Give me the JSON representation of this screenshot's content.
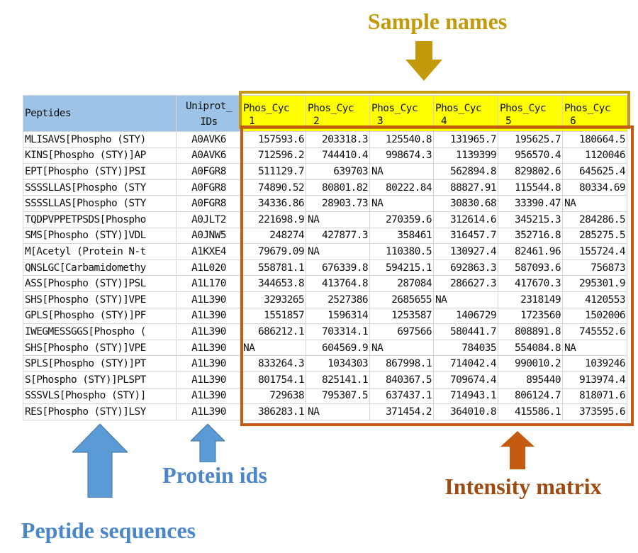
{
  "labels": {
    "sample_names": "Sample names",
    "protein_ids": "Protein ids",
    "intensity_matrix": "Intensity matrix",
    "peptide_sequences": "Peptide sequences"
  },
  "colors": {
    "sample": "#C39A0B",
    "blue": "#4A86C8",
    "orange": "#C55A11",
    "intensity_text": "#9E4A10",
    "header_blue": "#9DC3E6",
    "header_yellow": "#FFFF00"
  },
  "table": {
    "headers": {
      "peptides": "Peptides",
      "uniprot_line1": "Uniprot_",
      "uniprot_line2": "IDs",
      "samples": [
        {
          "l1": "Phos_Cyc",
          "l2": "1"
        },
        {
          "l1": "Phos_Cyc",
          "l2": "2"
        },
        {
          "l1": "Phos_Cyc",
          "l2": "3"
        },
        {
          "l1": "Phos_Cyc",
          "l2": "4"
        },
        {
          "l1": "Phos_Cyc",
          "l2": "5"
        },
        {
          "l1": "Phos_Cyc",
          "l2": "6"
        }
      ]
    },
    "rows": [
      {
        "peptide": "MLISAVS[Phospho (STY)",
        "id": "A0AVK6",
        "values": [
          "157593.6",
          "203318.3",
          "125540.8",
          "131965.7",
          "195625.7",
          "180664.5"
        ]
      },
      {
        "peptide": "KINS[Phospho (STY)]AP",
        "id": "A0AVK6",
        "values": [
          "712596.2",
          "744410.4",
          "998674.3",
          "1139399",
          "956570.4",
          "1120046"
        ]
      },
      {
        "peptide": "EPT[Phospho (STY)]PSI",
        "id": "A0FGR8",
        "values": [
          "511129.7",
          "639703",
          "NA",
          "562894.8",
          "829802.6",
          "645625.4"
        ]
      },
      {
        "peptide": "SSSSLLAS[Phospho (STY",
        "id": "A0FGR8",
        "values": [
          "74890.52",
          "80801.82",
          "80222.84",
          "88827.91",
          "115544.8",
          "80334.69"
        ]
      },
      {
        "peptide": "SSSSLLAS[Phospho (STY",
        "id": "A0FGR8",
        "values": [
          "34336.86",
          "28903.73",
          "NA",
          "30830.68",
          "33390.47",
          "NA"
        ]
      },
      {
        "peptide": "TQDPVPPETPSDS[Phospho",
        "id": "A0JLT2",
        "values": [
          "221698.9",
          "NA",
          "270359.6",
          "312614.6",
          "345215.3",
          "284286.5"
        ]
      },
      {
        "peptide": "SMS[Phospho (STY)]VDL",
        "id": "A0JNW5",
        "values": [
          "248274",
          "427877.3",
          "358461",
          "316457.7",
          "352716.8",
          "285275.5"
        ]
      },
      {
        "peptide": "M[Acetyl (Protein N-t",
        "id": "A1KXE4",
        "values": [
          "79679.09",
          "NA",
          "110380.5",
          "130927.4",
          "82461.96",
          "155724.4"
        ]
      },
      {
        "peptide": "QNSLGC[Carbamidomethy",
        "id": "A1L020",
        "values": [
          "558781.1",
          "676339.8",
          "594215.1",
          "692863.3",
          "587093.6",
          "756873"
        ]
      },
      {
        "peptide": "ASS[Phospho (STY)]PSL",
        "id": "A1L170",
        "values": [
          "344653.8",
          "413764.8",
          "287084",
          "286627.3",
          "417670.3",
          "295301.9"
        ]
      },
      {
        "peptide": "SHS[Phospho (STY)]VPE",
        "id": "A1L390",
        "values": [
          "3293265",
          "2527386",
          "2685655",
          "NA",
          "2318149",
          "4120553"
        ]
      },
      {
        "peptide": "GPLS[Phospho (STY)]PF",
        "id": "A1L390",
        "values": [
          "1551857",
          "1596314",
          "1253587",
          "1406729",
          "1723560",
          "1502006"
        ]
      },
      {
        "peptide": "IWEGMESSGGS[Phospho (",
        "id": "A1L390",
        "values": [
          "686212.1",
          "703314.1",
          "697566",
          "580441.7",
          "808891.8",
          "745552.6"
        ]
      },
      {
        "peptide": "SHS[Phospho (STY)]VPE",
        "id": "A1L390",
        "values": [
          "NA",
          "604569.9",
          "NA",
          "784035",
          "554084.8",
          "NA"
        ]
      },
      {
        "peptide": "SPLS[Phospho (STY)]PT",
        "id": "A1L390",
        "values": [
          "833264.3",
          "1034303",
          "867998.1",
          "714042.4",
          "990010.2",
          "1039246"
        ]
      },
      {
        "peptide": "S[Phospho (STY)]PLSPT",
        "id": "A1L390",
        "values": [
          "801754.1",
          "825141.1",
          "840367.5",
          "709674.4",
          "895440",
          "913974.4"
        ]
      },
      {
        "peptide": "SSSVLS[Phospho (STY)]",
        "id": "A1L390",
        "values": [
          "729638",
          "795307.5",
          "637437.1",
          "714943.1",
          "806124.7",
          "818071.6"
        ]
      },
      {
        "peptide": "RES[Phospho (STY)]LSY",
        "id": "A1L390",
        "values": [
          "386283.1",
          "NA",
          "371454.2",
          "364010.8",
          "415586.1",
          "373595.6"
        ]
      }
    ]
  }
}
